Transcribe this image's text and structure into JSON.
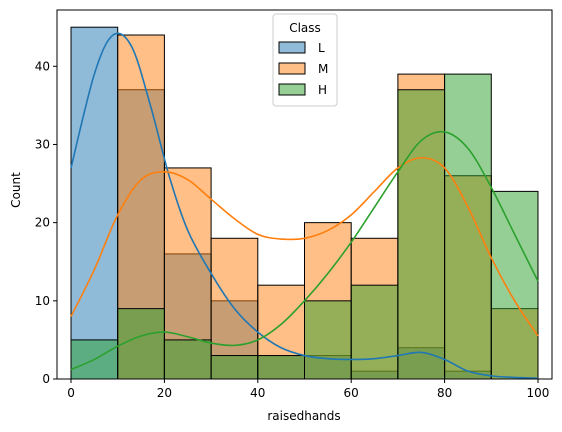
{
  "chart_data": {
    "type": "bar",
    "subtype": "overlapping-histogram-with-kde",
    "xlabel": "raisedhands",
    "ylabel": "Count",
    "xlim": [
      -3,
      103
    ],
    "ylim": [
      0,
      47.2
    ],
    "bin_edges": [
      0,
      10,
      20,
      30,
      40,
      50,
      60,
      70,
      80,
      90,
      100
    ],
    "x_ticks": [
      0,
      20,
      40,
      60,
      80,
      100
    ],
    "y_ticks": [
      0,
      10,
      20,
      30,
      40
    ],
    "grid": false,
    "legend": {
      "title": "Class",
      "position": "top-center"
    },
    "series": [
      {
        "name": "L",
        "color": "#1f77b4",
        "counts": [
          45,
          37,
          16,
          10,
          3,
          3,
          1,
          4,
          1,
          0
        ],
        "kde_x": [
          0,
          5,
          9,
          13,
          17,
          21,
          25,
          30,
          35,
          40,
          45,
          50,
          55,
          60,
          65,
          70,
          75,
          80,
          85,
          90,
          95,
          100
        ],
        "kde_y": [
          27,
          39,
          44,
          42.5,
          35,
          26,
          19,
          13.5,
          9,
          6,
          4,
          3,
          2.6,
          2.5,
          2.6,
          3,
          3.4,
          2.5,
          1,
          0.4,
          0.2,
          0.1
        ]
      },
      {
        "name": "M",
        "color": "#ff7f0e",
        "counts": [
          0,
          44,
          27,
          18,
          12,
          20,
          18,
          39,
          26,
          9
        ],
        "kde_x": [
          0,
          5,
          10,
          15,
          20,
          25,
          30,
          35,
          40,
          45,
          50,
          55,
          60,
          65,
          70,
          75,
          80,
          85,
          90,
          95,
          100
        ],
        "kde_y": [
          8,
          14,
          21,
          25.5,
          26.5,
          25.5,
          23,
          20.5,
          18.5,
          17.9,
          18,
          19,
          21,
          24,
          27,
          28.3,
          27,
          22,
          15.5,
          10,
          5.5
        ]
      },
      {
        "name": "H",
        "color": "#2ca02c",
        "counts": [
          5,
          9,
          5,
          3,
          3,
          10,
          12,
          37,
          39,
          24
        ],
        "kde_x": [
          0,
          5,
          10,
          15,
          20,
          25,
          30,
          35,
          40,
          45,
          50,
          55,
          60,
          65,
          70,
          75,
          80,
          85,
          90,
          95,
          100
        ],
        "kde_y": [
          1.2,
          2.5,
          4.2,
          5.5,
          6,
          5.4,
          4.6,
          4.3,
          5,
          7,
          10,
          13.5,
          17.5,
          22,
          26.5,
          30.5,
          31.6,
          29.5,
          24.5,
          18.5,
          12.5
        ]
      }
    ]
  }
}
